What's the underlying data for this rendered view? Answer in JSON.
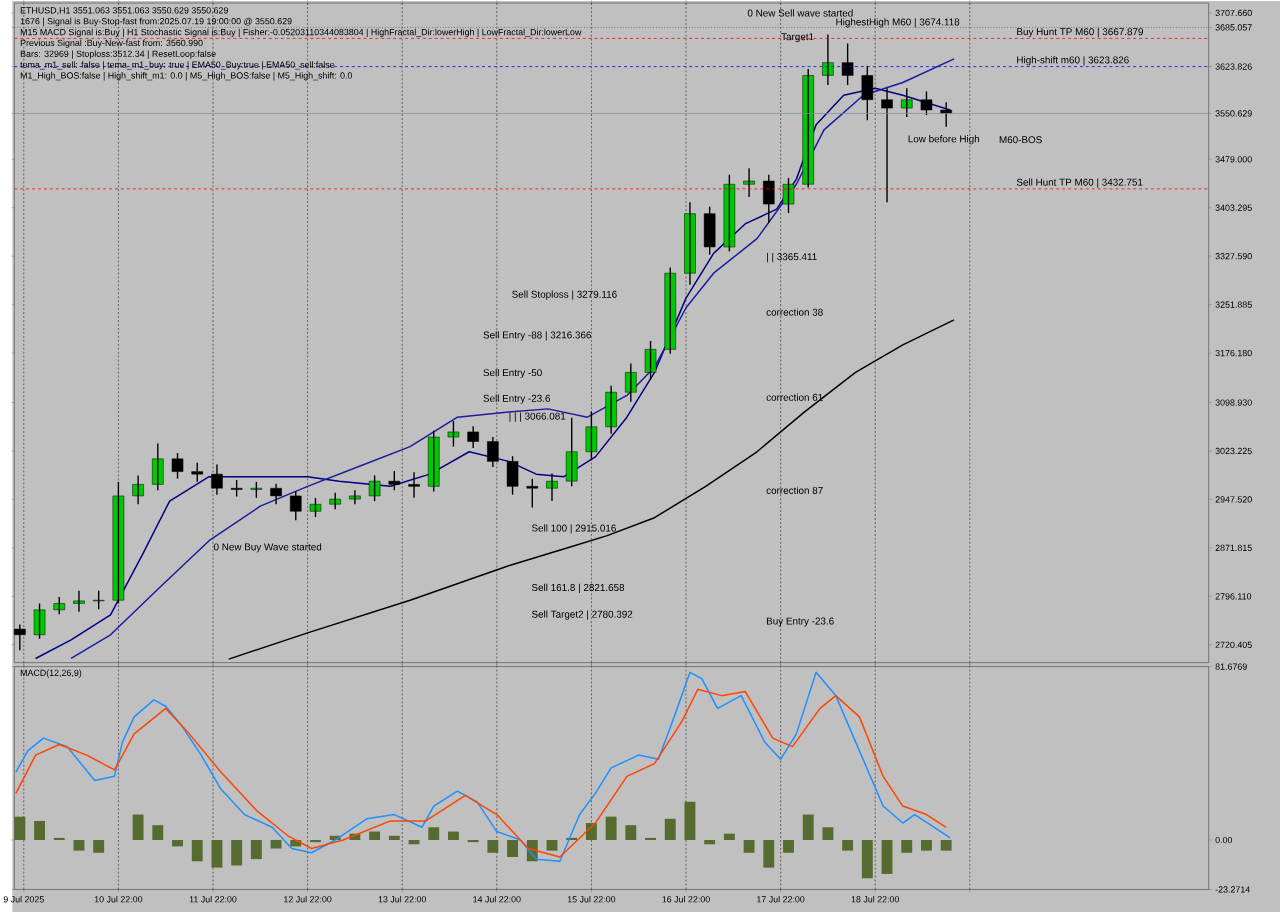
{
  "chart_data": [
    {
      "type": "candlestick",
      "title": "ETHUSD,H1  3551.063 3551.063 3550.629 3550.629",
      "x": [
        "2025-07-09T21:00",
        "2025-07-10T02:00",
        "2025-07-10T07:00",
        "2025-07-10T12:00",
        "2025-07-10T17:00",
        "2025-07-10T22:00",
        "2025-07-11T03:00",
        "2025-07-11T08:00",
        "2025-07-11T13:00",
        "2025-07-11T18:00",
        "2025-07-11T23:00",
        "2025-07-12T04:00",
        "2025-07-12T09:00",
        "2025-07-12T14:00",
        "2025-07-12T19:00",
        "2025-07-13T00:00",
        "2025-07-13T05:00",
        "2025-07-13T10:00",
        "2025-07-13T15:00",
        "2025-07-13T20:00",
        "2025-07-14T01:00",
        "2025-07-14T06:00",
        "2025-07-14T11:00",
        "2025-07-14T16:00",
        "2025-07-14T21:00",
        "2025-07-15T02:00",
        "2025-07-15T07:00",
        "2025-07-15T12:00",
        "2025-07-15T17:00",
        "2025-07-15T22:00",
        "2025-07-16T03:00",
        "2025-07-16T08:00",
        "2025-07-16T13:00",
        "2025-07-16T18:00",
        "2025-07-16T23:00",
        "2025-07-17T04:00",
        "2025-07-17T09:00",
        "2025-07-17T14:00",
        "2025-07-17T19:00",
        "2025-07-18T00:00",
        "2025-07-18T05:00",
        "2025-07-18T10:00",
        "2025-07-18T15:00",
        "2025-07-18T20:00",
        "2025-07-19T01:00",
        "2025-07-19T06:00",
        "2025-07-19T11:00",
        "2025-07-19T16:00"
      ],
      "ohlc": [
        [
          2745,
          2752,
          2712,
          2736
        ],
        [
          2736,
          2785,
          2730,
          2775
        ],
        [
          2775,
          2795,
          2768,
          2785
        ],
        [
          2785,
          2805,
          2772,
          2789
        ],
        [
          2789,
          2805,
          2776,
          2790
        ],
        [
          2790,
          2975,
          2785,
          2953
        ],
        [
          2953,
          2985,
          2940,
          2971
        ],
        [
          2971,
          3035,
          2962,
          3011
        ],
        [
          3011,
          3020,
          2980,
          2991
        ],
        [
          2991,
          3005,
          2975,
          2987
        ],
        [
          2987,
          3002,
          2955,
          2965
        ],
        [
          2965,
          2978,
          2952,
          2963
        ],
        [
          2963,
          2975,
          2950,
          2965
        ],
        [
          2965,
          2972,
          2940,
          2953
        ],
        [
          2953,
          2960,
          2915,
          2929
        ],
        [
          2929,
          2950,
          2920,
          2940
        ],
        [
          2940,
          2958,
          2932,
          2948
        ],
        [
          2948,
          2962,
          2940,
          2953
        ],
        [
          2953,
          2985,
          2945,
          2976
        ],
        [
          2976,
          2992,
          2962,
          2971
        ],
        [
          2971,
          2990,
          2950,
          2968
        ],
        [
          2968,
          3055,
          2960,
          3045
        ],
        [
          3045,
          3070,
          3030,
          3053
        ],
        [
          3053,
          3062,
          3028,
          3038
        ],
        [
          3038,
          3045,
          2998,
          3007
        ],
        [
          3007,
          3015,
          2955,
          2968
        ],
        [
          2968,
          2980,
          2935,
          2965
        ],
        [
          2965,
          2988,
          2945,
          2976
        ],
        [
          2976,
          3075,
          2968,
          3022
        ],
        [
          3022,
          3085,
          3010,
          3061
        ],
        [
          3061,
          3125,
          3050,
          3115
        ],
        [
          3115,
          3160,
          3100,
          3146
        ],
        [
          3146,
          3195,
          3135,
          3182
        ],
        [
          3182,
          3310,
          3175,
          3301
        ],
        [
          3301,
          3412,
          3283,
          3394
        ],
        [
          3394,
          3405,
          3330,
          3342
        ],
        [
          3342,
          3455,
          3335,
          3440
        ],
        [
          3440,
          3465,
          3420,
          3445
        ],
        [
          3445,
          3455,
          3380,
          3409
        ],
        [
          3409,
          3450,
          3395,
          3440
        ],
        [
          3440,
          3620,
          3435,
          3610
        ],
        [
          3610,
          3674,
          3595,
          3630
        ],
        [
          3630,
          3660,
          3595,
          3610
        ],
        [
          3610,
          3625,
          3540,
          3572
        ],
        [
          3572,
          3590,
          3412,
          3559
        ],
        [
          3559,
          3590,
          3545,
          3572
        ],
        [
          3572,
          3585,
          3548,
          3556
        ],
        [
          3556,
          3568,
          3530,
          3551
        ]
      ],
      "series": [
        {
          "type": "line",
          "color": "#000000",
          "x": [
            "2025-07-12T02:00",
            "2025-07-12T22:00",
            "2025-07-14T00:00",
            "2025-07-15T01:00",
            "2025-07-15T16:00",
            "2025-07-16T02:00",
            "2025-07-16T14:00",
            "2025-07-17T03:00",
            "2025-07-17T16:00",
            "2025-07-18T04:00",
            "2025-07-18T17:00",
            "2025-07-19T05:00",
            "2025-07-19T18:00"
          ],
          "values": [
            2698,
            2739,
            2790,
            2844,
            2872,
            2891,
            2919,
            2968,
            3022,
            3084,
            3146,
            3189,
            3228
          ]
        },
        {
          "type": "line",
          "color": "#000080",
          "x": [
            "2025-07-10T01:00",
            "2025-07-10T10:00",
            "2025-07-10T20:00",
            "2025-07-11T04:00",
            "2025-07-11T11:00",
            "2025-07-11T21:00",
            "2025-07-12T12:00",
            "2025-07-12T22:00",
            "2025-07-13T06:00",
            "2025-07-13T19:00",
            "2025-07-14T05:00",
            "2025-07-14T15:00",
            "2025-07-15T01:00",
            "2025-07-15T08:00",
            "2025-07-15T15:00",
            "2025-07-15T23:00",
            "2025-07-16T07:00",
            "2025-07-16T14:00",
            "2025-07-16T22:00",
            "2025-07-17T05:00",
            "2025-07-17T13:00",
            "2025-07-17T21:00",
            "2025-07-18T02:00",
            "2025-07-18T07:00",
            "2025-07-18T14:00",
            "2025-07-18T22:00",
            "2025-07-19T05:00",
            "2025-07-19T17:00"
          ],
          "values": [
            2699,
            2728,
            2767,
            2860,
            2945,
            2983,
            2983,
            2983,
            2976,
            2968,
            2987,
            3022,
            3007,
            2987,
            2983,
            3014,
            3076,
            3146,
            3262,
            3332,
            3378,
            3401,
            3448,
            3533,
            3579,
            3590,
            3579,
            3556
          ]
        },
        {
          "type": "line",
          "color": "#1c1c9c",
          "x": [
            "2025-07-10T10:00",
            "2025-07-10T20:00",
            "2025-07-11T09:00",
            "2025-07-11T21:00",
            "2025-07-12T10:00",
            "2025-07-12T22:00",
            "2025-07-13T11:00",
            "2025-07-14T00:00",
            "2025-07-14T12:00",
            "2025-07-15T01:00",
            "2025-07-15T11:00",
            "2025-07-15T21:00",
            "2025-07-16T07:00",
            "2025-07-16T14:00",
            "2025-07-16T22:00",
            "2025-07-17T05:00",
            "2025-07-17T16:00",
            "2025-07-18T02:00",
            "2025-07-18T09:00",
            "2025-07-18T19:00",
            "2025-07-19T05:00",
            "2025-07-19T18:00"
          ],
          "values": [
            2699,
            2736,
            2813,
            2883,
            2937,
            2968,
            2999,
            3030,
            3076,
            3084,
            3089,
            3076,
            3110,
            3154,
            3247,
            3301,
            3355,
            3440,
            3525,
            3579,
            3599,
            3636
          ]
        }
      ],
      "xlim": [
        "2025-07-09T19:36",
        "2025-07-22T10:36"
      ],
      "xticks": [
        {
          "value": "2025-07-09T22:00",
          "label": null
        },
        {
          "value": "2025-07-10T22:00",
          "label": null
        },
        {
          "value": "2025-07-11T22:00",
          "label": null
        },
        {
          "value": "2025-07-12T22:00",
          "label": null
        },
        {
          "value": "2025-07-13T22:00",
          "label": null
        },
        {
          "value": "2025-07-14T22:00",
          "label": null
        },
        {
          "value": "2025-07-15T22:00",
          "label": null
        },
        {
          "value": "2025-07-16T22:00",
          "label": null
        },
        {
          "value": "2025-07-17T22:00",
          "label": null
        },
        {
          "value": "2025-07-18T22:00",
          "label": null
        },
        {
          "value": "2025-07-19T22:00",
          "label": null
        }
      ],
      "ylim": [
        2692.5,
        3723.1
      ],
      "yticks": [
        2720.405,
        {
          "value": 2796.11,
          "label": "2796.110"
        },
        2871.815,
        {
          "value": 2947.52,
          "label": "2947.520"
        },
        3023.225,
        {
          "value": 3098.93,
          "label": "3098.930"
        },
        {
          "value": 3176.18,
          "label": "3176.180"
        },
        3251.885,
        {
          "value": 3327.59,
          "label": "3327.590"
        },
        3403.295,
        {
          "value": 3479,
          "label": "3479.000"
        },
        3550.629,
        3623.826,
        3685.057,
        {
          "value": 3707.66,
          "label": "3707.660"
        }
      ],
      "grid": "x",
      "tick_labels": "y",
      "ref_lines": [
        {
          "axis": "y",
          "value": 3685.057,
          "color": "#008000",
          "line_style": "dotted"
        },
        {
          "axis": "y",
          "value": 3667.879,
          "label": "Buy Hunt TP M60 | 3667.879",
          "color": "#ff0000",
          "line_style": "dashed"
        },
        {
          "axis": "y",
          "value": 3623.826,
          "label": "High-shift m60 | 3623.826",
          "color": "#0000ff",
          "line_style": "dashed"
        },
        {
          "axis": "y",
          "value": 3550.629,
          "color": "#7f8fa6",
          "line_style": "solid"
        },
        {
          "axis": "y",
          "value": 3432.751,
          "label": "Sell Hunt TP M60 | 3432.751",
          "color": "#ff0000",
          "line_style": "dashed"
        }
      ],
      "annotations": [
        "1676 | Signal is Buy-Stop-fast from:2025.07.19 19:00:00 @ 3550.629",
        "M15 MACD Signal is:Buy | H1 Stochastic Signal is:Buy | Fisher:-0.05203110344083804 | HighFractal_Dir:lowerHigh | LowFractal_Dir:lowerLow",
        "Previous Signal :Buy-New-fast from: 3560.990",
        "Bars: 32969 | Stoploss:3512.34 | ResetLoop:false",
        "tema_m1_sell: false | tema_m1_buy: true | EMA50_Buy:true | EMA50_sell:false",
        "M1_High_BOS:false | High_shift_m1: 0.0 | M5_High_BOS:false | M5_High_shift: 0.0",
        "0 New Sell wave started",
        "HighestHigh  M60 | 3674.118",
        "Target1",
        "Low before High",
        "M60-BOS",
        "| | 3365.411",
        "correction 38",
        "correction 61",
        "correction 87",
        "Buy Entry -23.6",
        "Sell Stoploss | 3279.116",
        "Sell Entry -88 | 3216.366",
        "Sell Entry -50",
        "Sell Entry -23.6",
        "| | | 3066.081",
        "Sell 100 | 2915.016",
        "Sell 161.8 | 2821.658",
        "Sell Target2 | 2780.392",
        "0 New Buy Wave started"
      ]
    },
    {
      "type": "bar",
      "title": "MACD(12,26,9)",
      "x": [
        "2025-07-09T21:00",
        "2025-07-10T02:00",
        "2025-07-10T07:00",
        "2025-07-10T12:00",
        "2025-07-10T17:00",
        "2025-07-10T22:00",
        "2025-07-11T03:00",
        "2025-07-11T08:00",
        "2025-07-11T13:00",
        "2025-07-11T18:00",
        "2025-07-11T23:00",
        "2025-07-12T04:00",
        "2025-07-12T09:00",
        "2025-07-12T14:00",
        "2025-07-12T19:00",
        "2025-07-13T00:00",
        "2025-07-13T05:00",
        "2025-07-13T10:00",
        "2025-07-13T15:00",
        "2025-07-13T20:00",
        "2025-07-14T01:00",
        "2025-07-14T06:00",
        "2025-07-14T11:00",
        "2025-07-14T16:00",
        "2025-07-14T21:00",
        "2025-07-15T02:00",
        "2025-07-15T07:00",
        "2025-07-15T12:00",
        "2025-07-15T17:00",
        "2025-07-15T22:00",
        "2025-07-16T03:00",
        "2025-07-16T08:00",
        "2025-07-16T13:00",
        "2025-07-16T18:00",
        "2025-07-16T23:00",
        "2025-07-17T04:00",
        "2025-07-17T09:00",
        "2025-07-17T14:00",
        "2025-07-17T19:00",
        "2025-07-18T00:00",
        "2025-07-18T05:00",
        "2025-07-18T10:00",
        "2025-07-18T15:00",
        "2025-07-18T20:00",
        "2025-07-19T01:00",
        "2025-07-19T06:00",
        "2025-07-19T11:00",
        "2025-07-19T16:00"
      ],
      "series": [
        {
          "type": "bar",
          "color": "#556b2f",
          "values": [
            11,
            9,
            1,
            -5,
            -6,
            0,
            12,
            7,
            -3,
            -10,
            -13,
            -12,
            -9,
            -4,
            -3,
            -1,
            2,
            3,
            4,
            2,
            -2,
            6,
            4,
            -1,
            -6,
            -8,
            -10,
            -5,
            1,
            8,
            11,
            7,
            1,
            10,
            18,
            -2,
            3,
            -6,
            -13,
            -6,
            12,
            6,
            -5,
            -18,
            -16,
            -6,
            -5,
            -5
          ]
        },
        {
          "type": "line",
          "color": "#1e90ff",
          "x": [
            "2025-07-09T20:00",
            "2025-07-09T23:00",
            "2025-07-10T03:00",
            "2025-07-10T09:00",
            "2025-07-10T16:00",
            "2025-07-10T21:00",
            "2025-07-10T23:00",
            "2025-07-11T02:00",
            "2025-07-11T07:00",
            "2025-07-11T10:00",
            "2025-07-11T14:00",
            "2025-07-11T19:00",
            "2025-07-12T00:00",
            "2025-07-12T06:00",
            "2025-07-12T13:00",
            "2025-07-12T18:00",
            "2025-07-12T23:00",
            "2025-07-13T05:00",
            "2025-07-13T13:00",
            "2025-07-13T20:00",
            "2025-07-14T03:00",
            "2025-07-14T06:00",
            "2025-07-14T12:00",
            "2025-07-14T17:00",
            "2025-07-14T22:00",
            "2025-07-15T04:00",
            "2025-07-15T08:00",
            "2025-07-15T14:00",
            "2025-07-15T19:00",
            "2025-07-15T23:00",
            "2025-07-16T03:00",
            "2025-07-16T10:00",
            "2025-07-16T15:00",
            "2025-07-16T19:00",
            "2025-07-16T23:00",
            "2025-07-17T02:00",
            "2025-07-17T06:00",
            "2025-07-17T12:00",
            "2025-07-17T18:00",
            "2025-07-17T22:00",
            "2025-07-18T02:00",
            "2025-07-18T07:00",
            "2025-07-18T12:00",
            "2025-07-18T18:00",
            "2025-07-19T00:00",
            "2025-07-19T05:00",
            "2025-07-19T08:00",
            "2025-07-19T13:00",
            "2025-07-19T17:00"
          ],
          "values": [
            32,
            42,
            48,
            44,
            28,
            30,
            46,
            58,
            66,
            63,
            54,
            40,
            24,
            12,
            6,
            -4,
            -6,
            0,
            10,
            12,
            6,
            16,
            23,
            18,
            4,
            0,
            -9,
            -10,
            12,
            22,
            34,
            40,
            38,
            58,
            79,
            76,
            62,
            68,
            46,
            38,
            50,
            79,
            68,
            42,
            16,
            8,
            12,
            6,
            1
          ]
        },
        {
          "type": "line",
          "color": "#ff4500",
          "x": [
            "2025-07-09T20:00",
            "2025-07-10T01:00",
            "2025-07-10T07:00",
            "2025-07-10T14:00",
            "2025-07-10T21:00",
            "2025-07-11T02:00",
            "2025-07-11T10:00",
            "2025-07-11T16:00",
            "2025-07-12T00:00",
            "2025-07-12T09:00",
            "2025-07-12T17:00",
            "2025-07-12T23:00",
            "2025-07-13T07:00",
            "2025-07-13T19:00",
            "2025-07-14T04:00",
            "2025-07-14T14:00",
            "2025-07-14T22:00",
            "2025-07-15T06:00",
            "2025-07-15T14:00",
            "2025-07-15T23:00",
            "2025-07-16T07:00",
            "2025-07-16T14:00",
            "2025-07-16T21:00",
            "2025-07-17T01:00",
            "2025-07-17T07:00",
            "2025-07-17T13:00",
            "2025-07-17T20:00",
            "2025-07-18T01:00",
            "2025-07-18T08:00",
            "2025-07-18T12:00",
            "2025-07-18T18:00",
            "2025-07-19T00:00",
            "2025-07-19T05:00",
            "2025-07-19T11:00",
            "2025-07-19T16:00"
          ],
          "values": [
            22,
            40,
            45,
            40,
            33,
            50,
            62,
            50,
            32,
            14,
            2,
            -4,
            0,
            9,
            9,
            21,
            12,
            -4,
            -8,
            8,
            30,
            36,
            56,
            71,
            68,
            70,
            48,
            44,
            62,
            68,
            58,
            30,
            16,
            12,
            6
          ]
        }
      ],
      "xlim": [
        "2025-07-09T19:36",
        "2025-07-22T10:36"
      ],
      "xticks": [
        {
          "value": "2025-07-09T22:00",
          "label": "9 Jul 2025"
        },
        {
          "value": "2025-07-10T22:00",
          "label": "10 Jul 22:00"
        },
        {
          "value": "2025-07-11T22:00",
          "label": "11 Jul 22:00"
        },
        {
          "value": "2025-07-12T22:00",
          "label": "12 Jul 22:00"
        },
        {
          "value": "2025-07-13T22:00",
          "label": "13 Jul 22:00"
        },
        {
          "value": "2025-07-14T22:00",
          "label": "14 Jul 22:00"
        },
        {
          "value": "2025-07-15T22:00",
          "label": "15 Jul 22:00"
        },
        {
          "value": "2025-07-16T22:00",
          "label": "16 Jul 22:00"
        },
        {
          "value": "2025-07-17T22:00",
          "label": "17 Jul 22:00"
        },
        {
          "value": "2025-07-18T22:00",
          "label": "18 Jul 22:00"
        },
        {
          "value": "2025-07-19T22:00",
          "label": null
        }
      ],
      "ylim": [
        -23.2714,
        81.6769
      ],
      "yticks": [
        -23.2714,
        {
          "value": 0,
          "label": "0.00"
        },
        81.6769
      ],
      "grid": "x"
    }
  ]
}
